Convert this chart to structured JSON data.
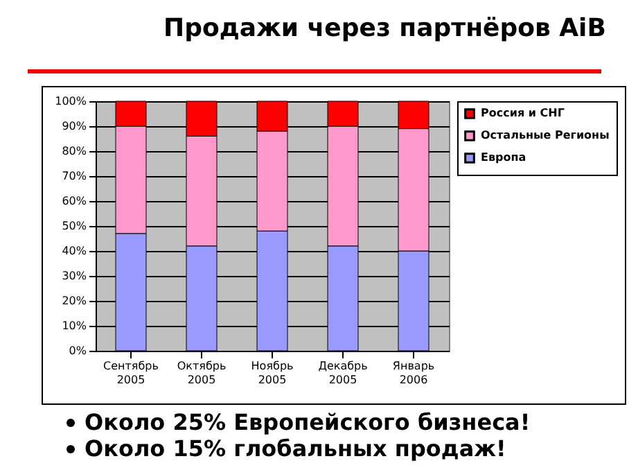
{
  "chart_data": {
    "type": "bar",
    "stacked": true,
    "title": "Продажи через партнёров AiB",
    "categories": [
      "Сентябрь 2005",
      "Октябрь 2005",
      "Ноябрь 2005",
      "Декабрь 2005",
      "Январь 2006"
    ],
    "series": [
      {
        "name": "Европа",
        "color": "#9999ff",
        "values": [
          47,
          42,
          48,
          42,
          40
        ]
      },
      {
        "name": "Остальные Регионы",
        "color": "#ff99cc",
        "values": [
          43,
          44,
          40,
          48,
          49
        ]
      },
      {
        "name": "Россия и СНГ",
        "color": "#ff0000",
        "values": [
          10,
          14,
          12,
          10,
          11
        ]
      }
    ],
    "ylim": [
      0,
      100
    ],
    "yticks": [
      {
        "value": 0,
        "label": "0%"
      },
      {
        "value": 10,
        "label": "10%"
      },
      {
        "value": 20,
        "label": "20%"
      },
      {
        "value": 30,
        "label": "30%"
      },
      {
        "value": 40,
        "label": "40%"
      },
      {
        "value": 50,
        "label": "50%"
      },
      {
        "value": 60,
        "label": "60%"
      },
      {
        "value": 70,
        "label": "70%"
      },
      {
        "value": 80,
        "label": "80%"
      },
      {
        "value": 90,
        "label": "90%"
      },
      {
        "value": 100,
        "label": "100%"
      }
    ],
    "grid": "y",
    "legend": "right",
    "annotations": [
      "Около 25% Европейского бизнеса!",
      "Около 15% глобальных продаж!"
    ]
  }
}
